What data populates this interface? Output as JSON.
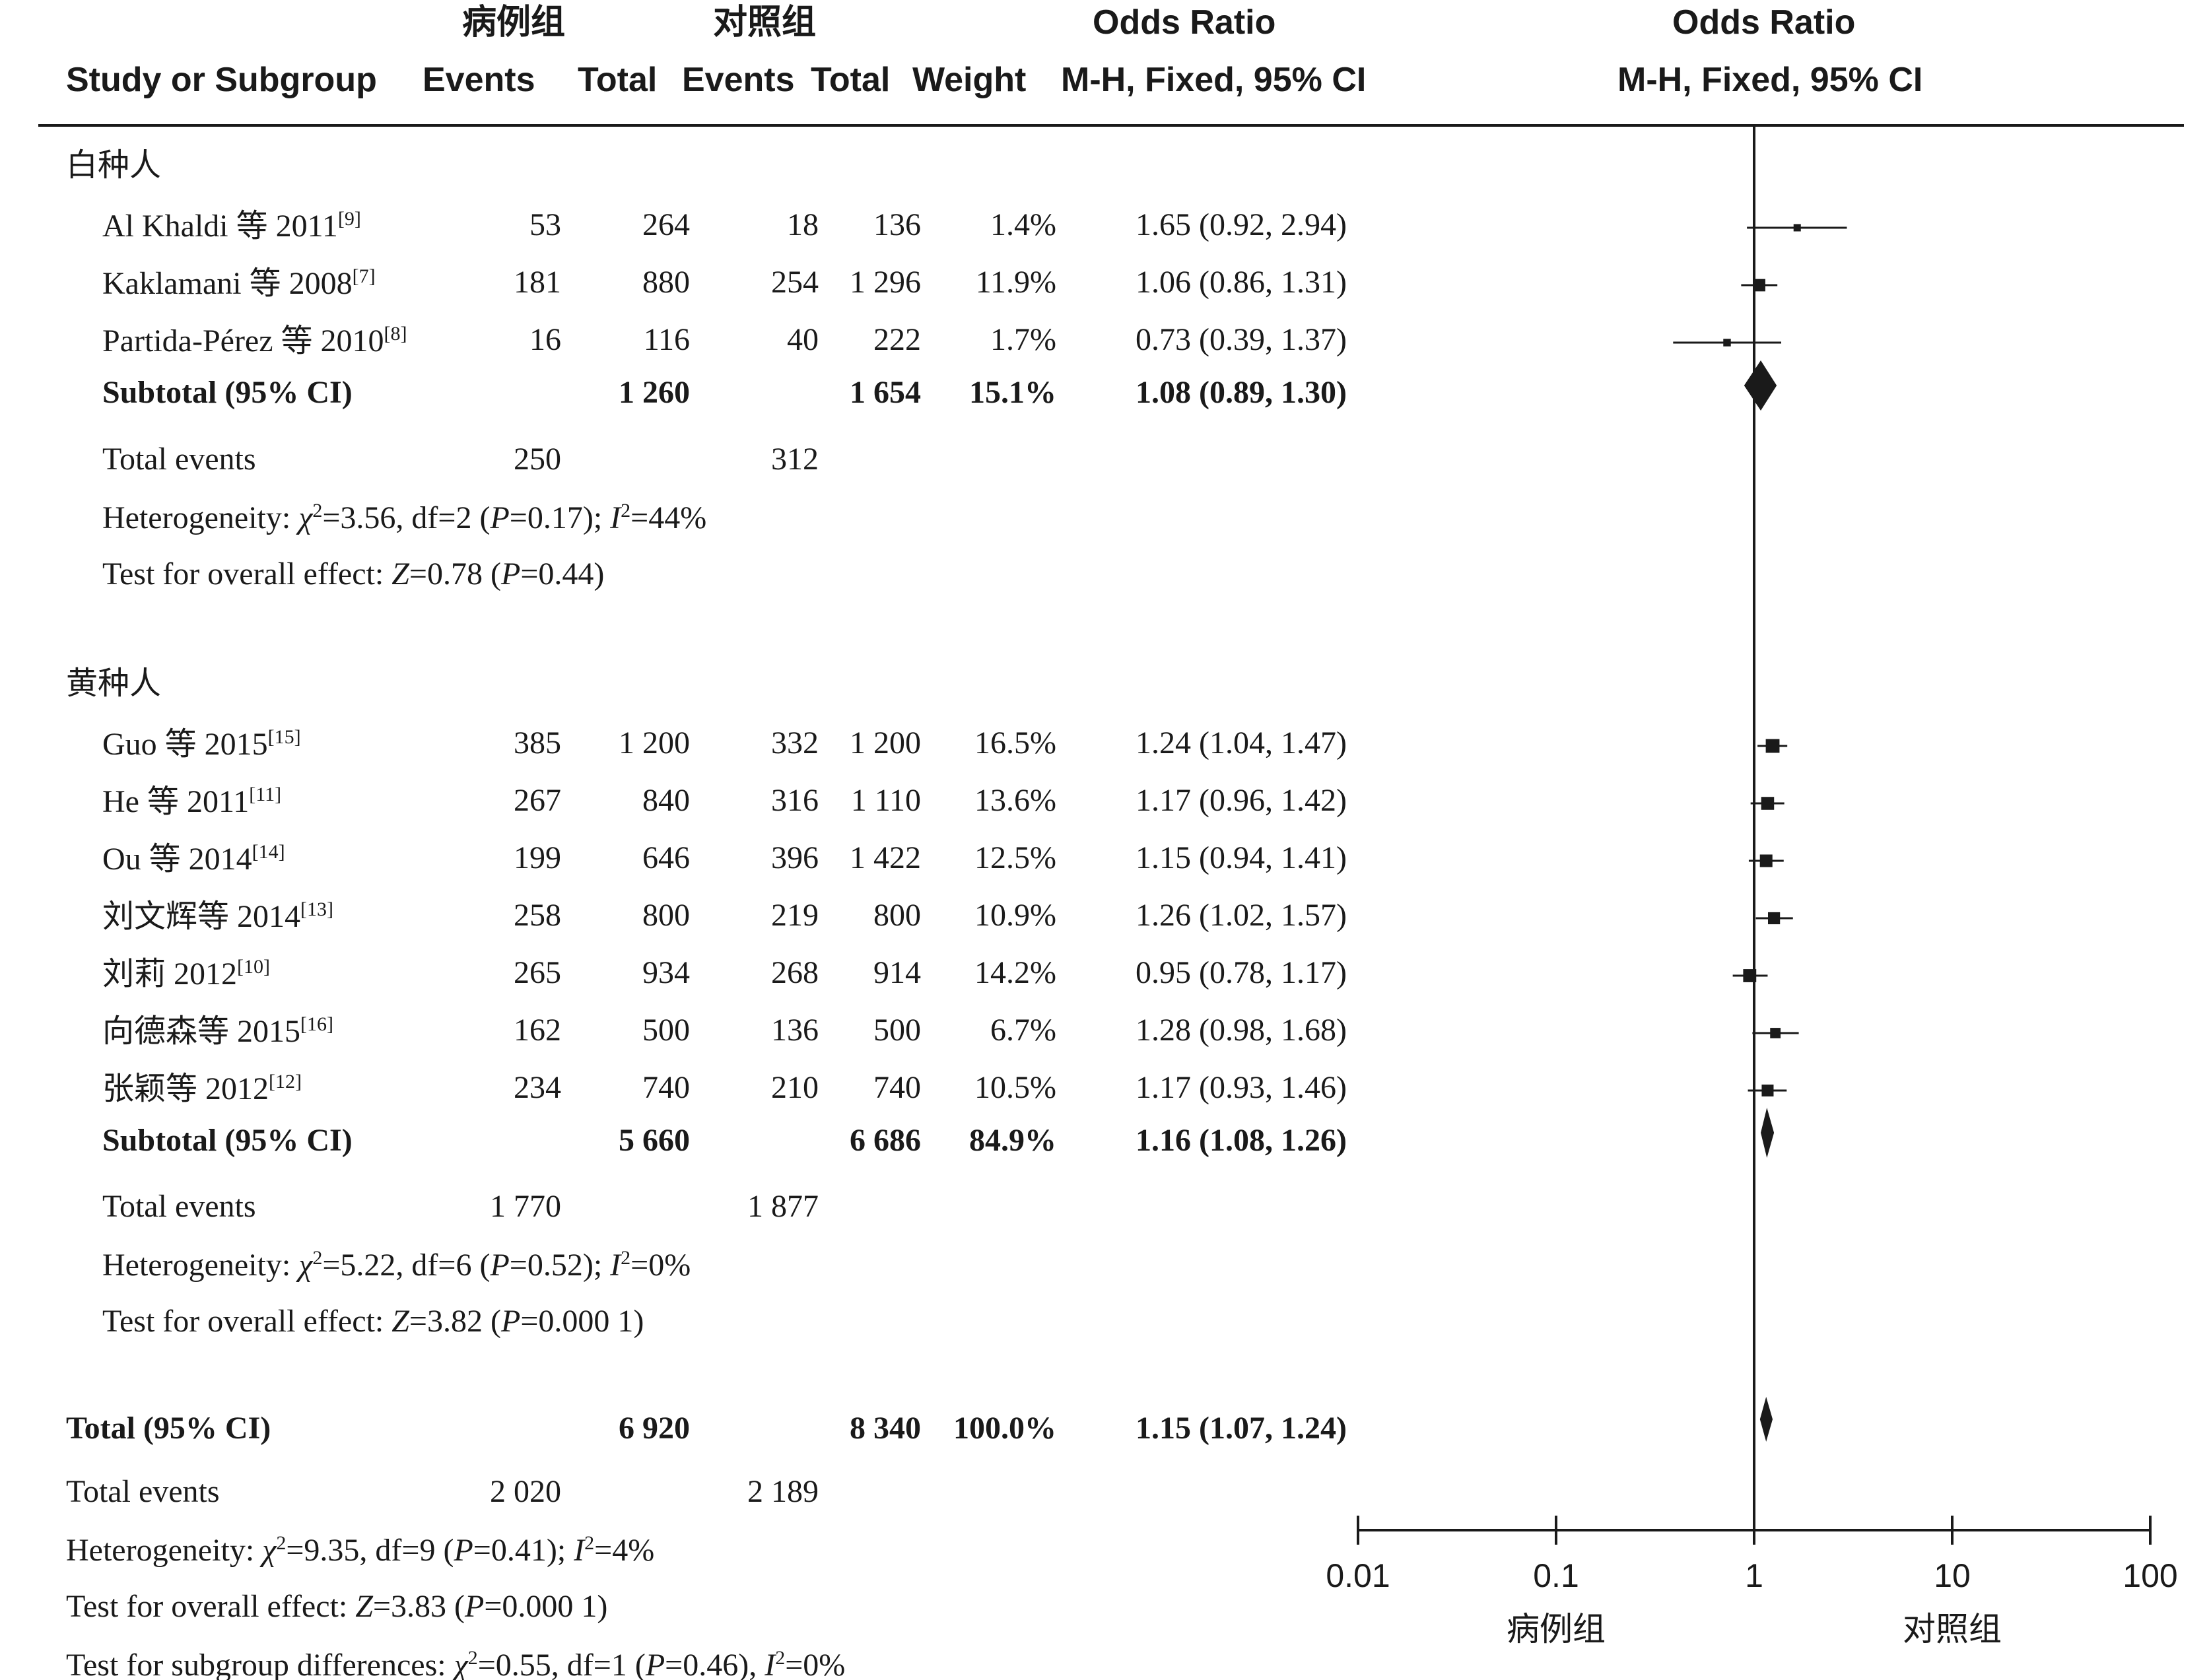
{
  "chart_data": {
    "type": "forest",
    "header": {
      "case_group": "病例组",
      "control_group": "对照组",
      "study_col": "Study or Subgroup",
      "events": "Events",
      "total": "Total",
      "weight": "Weight",
      "or_title": "Odds Ratio",
      "or_method": "M-H, Fixed, 95% CI",
      "plot_title": "Odds Ratio",
      "plot_method": "M-H, Fixed, 95% CI"
    },
    "subgroups": [
      {
        "name": "白种人",
        "studies": [
          {
            "name": "Al Khaldi 等 2011",
            "ref": "[9]",
            "case_events": "53",
            "case_total": "264",
            "ctrl_events": "18",
            "ctrl_total": "136",
            "weight": "1.4%",
            "ci_text": "1.65 (0.92, 2.94)",
            "or": 1.65,
            "lo": 0.92,
            "hi": 2.94,
            "w": 1.4
          },
          {
            "name": "Kaklamani 等 2008",
            "ref": "[7]",
            "case_events": "181",
            "case_total": "880",
            "ctrl_events": "254",
            "ctrl_total": "1 296",
            "weight": "11.9%",
            "ci_text": "1.06 (0.86, 1.31)",
            "or": 1.06,
            "lo": 0.86,
            "hi": 1.31,
            "w": 11.9
          },
          {
            "name": "Partida-Pérez 等 2010",
            "ref": "[8]",
            "case_events": "16",
            "case_total": "116",
            "ctrl_events": "40",
            "ctrl_total": "222",
            "weight": "1.7%",
            "ci_text": "0.73 (0.39, 1.37)",
            "or": 0.73,
            "lo": 0.39,
            "hi": 1.37,
            "w": 1.7
          }
        ],
        "subtotal": {
          "label": "Subtotal (95% CI)",
          "case_total": "1 260",
          "ctrl_total": "1 654",
          "weight": "15.1%",
          "ci_text": "1.08 (0.89, 1.30)",
          "or": 1.08,
          "lo": 0.89,
          "hi": 1.3
        },
        "total_events": {
          "label": "Total events",
          "case": "250",
          "ctrl": "312"
        },
        "heterogeneity": {
          "prefix": "Heterogeneity: ",
          "chi_val": "=3.56, df=2 (",
          "p_val": "=0.17); ",
          "i_val": "=44%"
        },
        "overall": {
          "prefix": "Test for overall effect: ",
          "z_val": "=0.78 (",
          "p_val": "=0.44)"
        }
      },
      {
        "name": "黄种人",
        "studies": [
          {
            "name": "Guo 等 2015",
            "ref": "[15]",
            "case_events": "385",
            "case_total": "1 200",
            "ctrl_events": "332",
            "ctrl_total": "1 200",
            "weight": "16.5%",
            "ci_text": "1.24 (1.04, 1.47)",
            "or": 1.24,
            "lo": 1.04,
            "hi": 1.47,
            "w": 16.5
          },
          {
            "name": "He 等 2011",
            "ref": "[11]",
            "case_events": "267",
            "case_total": "840",
            "ctrl_events": "316",
            "ctrl_total": "1 110",
            "weight": "13.6%",
            "ci_text": "1.17 (0.96, 1.42)",
            "or": 1.17,
            "lo": 0.96,
            "hi": 1.42,
            "w": 13.6
          },
          {
            "name": "Ou 等 2014",
            "ref": "[14]",
            "case_events": "199",
            "case_total": "646",
            "ctrl_events": "396",
            "ctrl_total": "1 422",
            "weight": "12.5%",
            "ci_text": "1.15 (0.94, 1.41)",
            "or": 1.15,
            "lo": 0.94,
            "hi": 1.41,
            "w": 12.5
          },
          {
            "name": "刘文辉等 2014",
            "ref": "[13]",
            "case_events": "258",
            "case_total": "800",
            "ctrl_events": "219",
            "ctrl_total": "800",
            "weight": "10.9%",
            "ci_text": "1.26 (1.02, 1.57)",
            "or": 1.26,
            "lo": 1.02,
            "hi": 1.57,
            "w": 10.9
          },
          {
            "name": "刘莉 2012",
            "ref": "[10]",
            "case_events": "265",
            "case_total": "934",
            "ctrl_events": "268",
            "ctrl_total": "914",
            "weight": "14.2%",
            "ci_text": "0.95 (0.78, 1.17)",
            "or": 0.95,
            "lo": 0.78,
            "hi": 1.17,
            "w": 14.2
          },
          {
            "name": "向德森等 2015",
            "ref": "[16]",
            "case_events": "162",
            "case_total": "500",
            "ctrl_events": "136",
            "ctrl_total": "500",
            "weight": "6.7%",
            "ci_text": "1.28 (0.98, 1.68)",
            "or": 1.28,
            "lo": 0.98,
            "hi": 1.68,
            "w": 6.7
          },
          {
            "name": "张颖等 2012",
            "ref": "[12]",
            "case_events": "234",
            "case_total": "740",
            "ctrl_events": "210",
            "ctrl_total": "740",
            "weight": "10.5%",
            "ci_text": "1.17 (0.93, 1.46)",
            "or": 1.17,
            "lo": 0.93,
            "hi": 1.46,
            "w": 10.5
          }
        ],
        "subtotal": {
          "label": "Subtotal (95% CI)",
          "case_total": "5 660",
          "ctrl_total": "6 686",
          "weight": "84.9%",
          "ci_text": "1.16 (1.08, 1.26)",
          "or": 1.16,
          "lo": 1.08,
          "hi": 1.26
        },
        "total_events": {
          "label": "Total events",
          "case": "1 770",
          "ctrl": "1 877"
        },
        "heterogeneity": {
          "prefix": "Heterogeneity: ",
          "chi_val": "=5.22, df=6 (",
          "p_val": "=0.52); ",
          "i_val": "=0%"
        },
        "overall": {
          "prefix": "Test for overall effect: ",
          "z_val": "=3.82 (",
          "p_val": "=0.000 1)"
        }
      }
    ],
    "total": {
      "label": "Total (95% CI)",
      "case_total": "6 920",
      "ctrl_total": "8 340",
      "weight": "100.0%",
      "ci_text": "1.15 (1.07, 1.24)",
      "or": 1.15,
      "lo": 1.07,
      "hi": 1.24
    },
    "total_events": {
      "label": "Total events",
      "case": "2 020",
      "ctrl": "2 189"
    },
    "heterogeneity": {
      "prefix": "Heterogeneity: ",
      "chi_val": "=9.35, df=9 (",
      "p_val": "=0.41); ",
      "i_val": "=4%"
    },
    "overall": {
      "prefix": "Test for overall effect: ",
      "z_val": "=3.83 (",
      "p_val": "=0.000 1)"
    },
    "subgroup_diff": {
      "prefix": "Test for subgroup differences: ",
      "chi_val": "=0.55, df=1 (",
      "p_val": "=0.46), ",
      "i_val": "=0%"
    },
    "axis": {
      "scale": "log",
      "xlim": [
        0.01,
        100
      ],
      "ticks": [
        0.01,
        0.1,
        1,
        10,
        100
      ],
      "tick_labels": [
        "0.01",
        "0.1",
        "1",
        "10",
        "100"
      ],
      "left_label": "病例组",
      "right_label": "对照组",
      "null_line": 1
    }
  }
}
